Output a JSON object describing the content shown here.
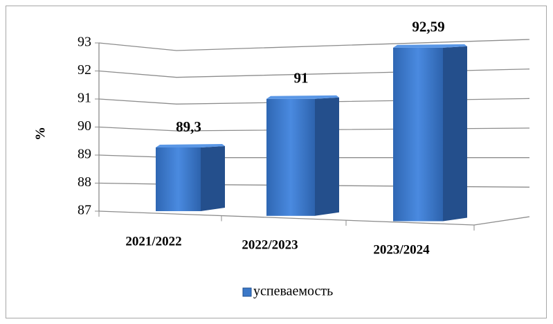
{
  "chart_data": {
    "type": "bar3d",
    "categories": [
      "2021/2022",
      "2022/2023",
      "2023/2024"
    ],
    "series": [
      {
        "name": "успеваемость",
        "color": "#3b78c8",
        "values": [
          89.3,
          91,
          92.59
        ],
        "value_labels": [
          "89,3",
          "91",
          "92,59"
        ]
      }
    ],
    "ylabel": "%",
    "ylim": [
      87,
      93
    ],
    "yticks": [
      87,
      88,
      89,
      90,
      91,
      92,
      93
    ],
    "grid": true,
    "legend": "bottom"
  }
}
